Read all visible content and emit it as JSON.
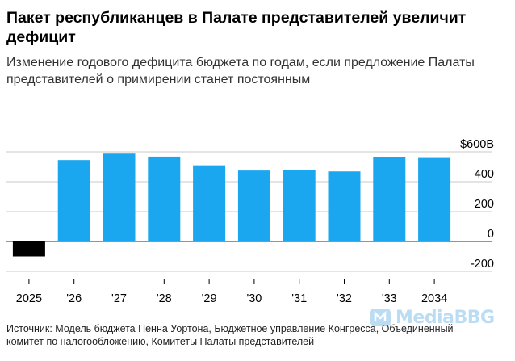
{
  "title": "Пакет республиканцев в Палате представителей увеличит дефицит",
  "subtitle": "Изменение годового дефицита бюджета по годам, если предложение Палаты представителей о примирении станет постоянным",
  "source": "Источник: Модель бюджета Пенна Уортона, Бюджетное управление Конгресса, Объединенный комитет по налогообложению, Комитеты Палаты представителей",
  "watermark": {
    "text": "MediaBBG",
    "icon": "media-logo-icon"
  },
  "colors": {
    "positive": "#1aa7f0",
    "negative": "#000000",
    "grid": "#c8c8c8",
    "zero": "#555555"
  },
  "chart_data": {
    "type": "bar",
    "title": "Пакет республиканцев в Палате представителей увеличит дефицит",
    "categories": [
      "2025",
      "'26",
      "'27",
      "'28",
      "'29",
      "'30",
      "'31",
      "'32",
      "'33",
      "2034"
    ],
    "values": [
      -100,
      545,
      588,
      568,
      510,
      475,
      476,
      469,
      565,
      559
    ],
    "ylim": [
      -200,
      600
    ],
    "yticks": [
      -200,
      0,
      200,
      400,
      600
    ],
    "ytick_labels": [
      "-200",
      "0",
      "200",
      "400",
      "$600B"
    ],
    "xlabel": "",
    "ylabel": "",
    "grid": true
  }
}
